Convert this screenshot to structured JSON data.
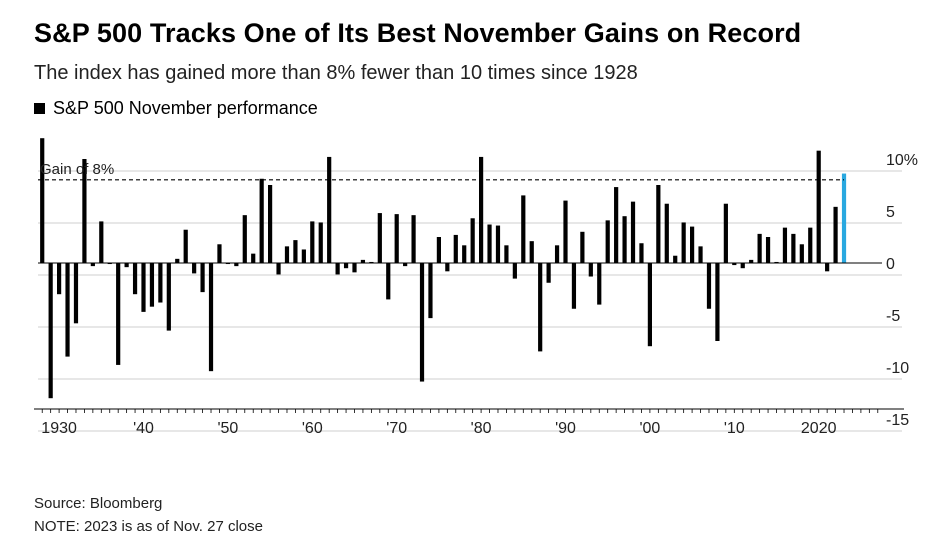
{
  "header": {
    "title": "S&P 500 Tracks One of Its Best November Gains on Record",
    "subtitle": "The index has gained more than 8% fewer than 10 times since 1928"
  },
  "footer": {
    "source": "Source: Bloomberg",
    "note": "NOTE: 2023 is as of Nov. 27 close"
  },
  "colors": {
    "bar": "#000000",
    "highlight": "#29a8e0",
    "grid": "#cfcfcf",
    "reference": "#000000"
  },
  "chart_data": {
    "type": "bar",
    "legend": [
      "S&P 500 November performance"
    ],
    "series": [
      {
        "name": "S&P 500 November performance",
        "highlight_year": 2023
      }
    ],
    "x": [
      1928,
      1929,
      1930,
      1931,
      1932,
      1933,
      1934,
      1935,
      1936,
      1937,
      1938,
      1939,
      1940,
      1941,
      1942,
      1943,
      1944,
      1945,
      1946,
      1947,
      1948,
      1949,
      1950,
      1951,
      1952,
      1953,
      1954,
      1955,
      1956,
      1957,
      1958,
      1959,
      1960,
      1961,
      1962,
      1963,
      1964,
      1965,
      1966,
      1967,
      1968,
      1969,
      1970,
      1971,
      1972,
      1973,
      1974,
      1975,
      1976,
      1977,
      1978,
      1979,
      1980,
      1981,
      1982,
      1983,
      1984,
      1985,
      1986,
      1987,
      1988,
      1989,
      1990,
      1991,
      1992,
      1993,
      1994,
      1995,
      1996,
      1997,
      1998,
      1999,
      2000,
      2001,
      2002,
      2003,
      2004,
      2005,
      2006,
      2007,
      2008,
      2009,
      2010,
      2011,
      2012,
      2013,
      2014,
      2015,
      2016,
      2017,
      2018,
      2019,
      2020,
      2021,
      2022,
      2023
    ],
    "values": [
      12.0,
      -13.0,
      -3.0,
      -9.0,
      -5.8,
      10.0,
      -0.3,
      4.0,
      -0.1,
      -9.8,
      -0.4,
      -3.0,
      -4.7,
      -4.2,
      -3.8,
      -6.5,
      0.4,
      3.2,
      -1.0,
      -2.8,
      -10.4,
      1.8,
      -0.1,
      -0.3,
      4.6,
      0.9,
      8.1,
      7.5,
      -1.1,
      1.6,
      2.2,
      1.3,
      4.0,
      3.9,
      10.2,
      -1.1,
      -0.5,
      -0.9,
      0.3,
      0.1,
      4.8,
      -3.5,
      4.7,
      -0.3,
      4.6,
      -11.4,
      -5.3,
      2.5,
      -0.8,
      2.7,
      1.7,
      4.3,
      10.2,
      3.7,
      3.6,
      1.7,
      -1.5,
      6.5,
      2.1,
      -8.5,
      -1.9,
      1.7,
      6.0,
      -4.4,
      3.0,
      -1.3,
      -4.0,
      4.1,
      7.3,
      4.5,
      5.9,
      1.9,
      -8.0,
      7.5,
      5.7,
      0.7,
      3.9,
      3.5,
      1.6,
      -4.4,
      -7.5,
      5.7,
      -0.2,
      -0.5,
      0.3,
      2.8,
      2.5,
      0.1,
      3.4,
      2.8,
      1.8,
      3.4,
      10.8,
      -0.8,
      5.4,
      8.6
    ],
    "reference_line": {
      "value": 8,
      "label": "Gain of 8%"
    },
    "ylim": [
      -15.5,
      12
    ],
    "y_ticks": [
      10,
      5,
      0,
      -5,
      -10,
      -15
    ],
    "y_tick_labels": [
      "10%",
      "5",
      "0",
      "-5",
      "-10",
      "-15"
    ],
    "x_ticks": [
      1930,
      1940,
      1950,
      1960,
      1970,
      1980,
      1990,
      2000,
      2010,
      2020
    ],
    "x_tick_labels": [
      "1930",
      "'40",
      "'50",
      "'60",
      "'70",
      "'80",
      "'90",
      "'00",
      "'10",
      "2020"
    ],
    "xlim": [
      1928,
      2027
    ],
    "grid": true,
    "legend_position": "top-left"
  }
}
